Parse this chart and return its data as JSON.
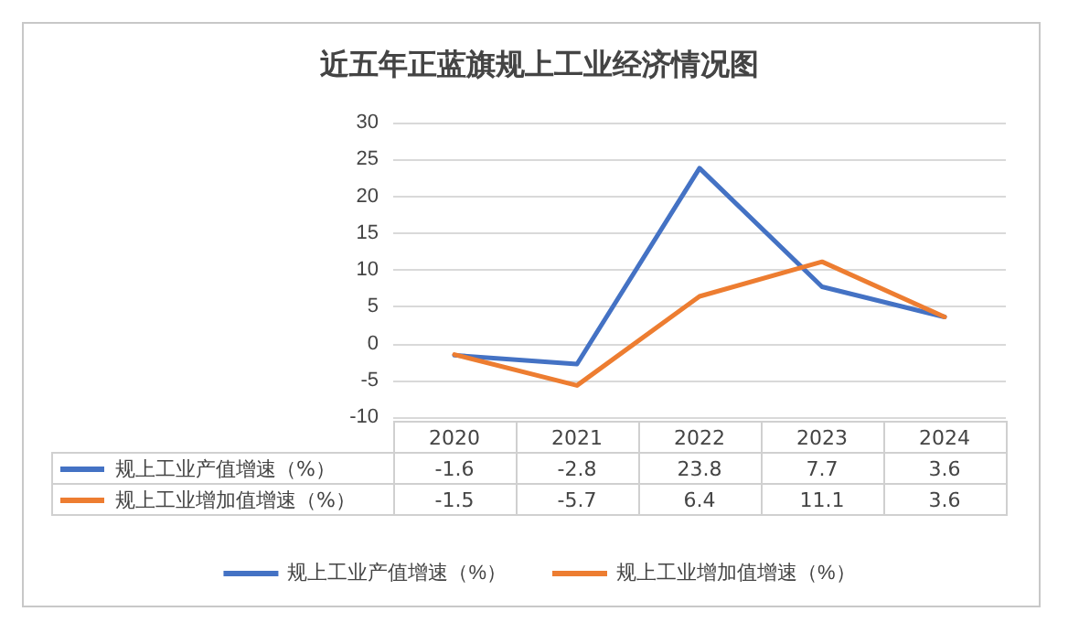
{
  "chart_data": {
    "type": "line",
    "title": "近五年正蓝旗规上工业经济情况图",
    "categories": [
      "2020",
      "2021",
      "2022",
      "2023",
      "2024"
    ],
    "series": [
      {
        "name": "规上工业产值增速（%）",
        "color": "#4472c4",
        "values": [
          -1.6,
          -2.8,
          23.8,
          7.7,
          3.6
        ]
      },
      {
        "name": "规上工业增加值增速（%）",
        "color": "#ed7d31",
        "values": [
          -1.5,
          -5.7,
          6.4,
          11.1,
          3.6
        ]
      }
    ],
    "ylim": [
      -10,
      30
    ],
    "yticks": [
      -10,
      -5,
      0,
      5,
      10,
      15,
      20,
      25,
      30
    ],
    "grid": "y",
    "legend": "bottom",
    "marker": "none",
    "line_style": "solid",
    "data_labels": true
  }
}
